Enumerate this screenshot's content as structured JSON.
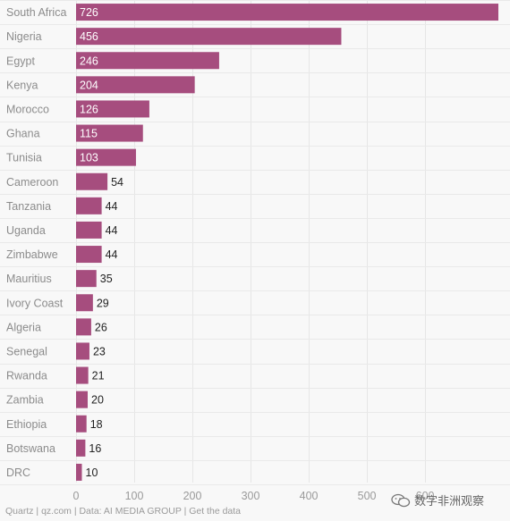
{
  "chart_data": {
    "type": "bar",
    "orientation": "horizontal",
    "categories": [
      "South Africa",
      "Nigeria",
      "Egypt",
      "Kenya",
      "Morocco",
      "Ghana",
      "Tunisia",
      "Cameroon",
      "Tanzania",
      "Uganda",
      "Zimbabwe",
      "Mauritius",
      "Ivory Coast",
      "Algeria",
      "Senegal",
      "Rwanda",
      "Zambia",
      "Ethiopia",
      "Botswana",
      "DRC"
    ],
    "values": [
      726,
      456,
      246,
      204,
      126,
      115,
      103,
      54,
      44,
      44,
      44,
      35,
      29,
      26,
      23,
      21,
      20,
      18,
      16,
      10
    ],
    "xticks": [
      0,
      100,
      200,
      300,
      400,
      500,
      600
    ],
    "xlim": [
      0,
      726
    ],
    "grid": "vertical",
    "colors": {
      "bar": "#a64d7e",
      "bar_highlight": "#a64d7e"
    }
  },
  "footer": {
    "source": "Quartz | qz.com | Data: AI MEDIA GROUP | Get the data"
  },
  "watermark": {
    "text": "数字非洲观察",
    "icon": "wechat-icon"
  }
}
